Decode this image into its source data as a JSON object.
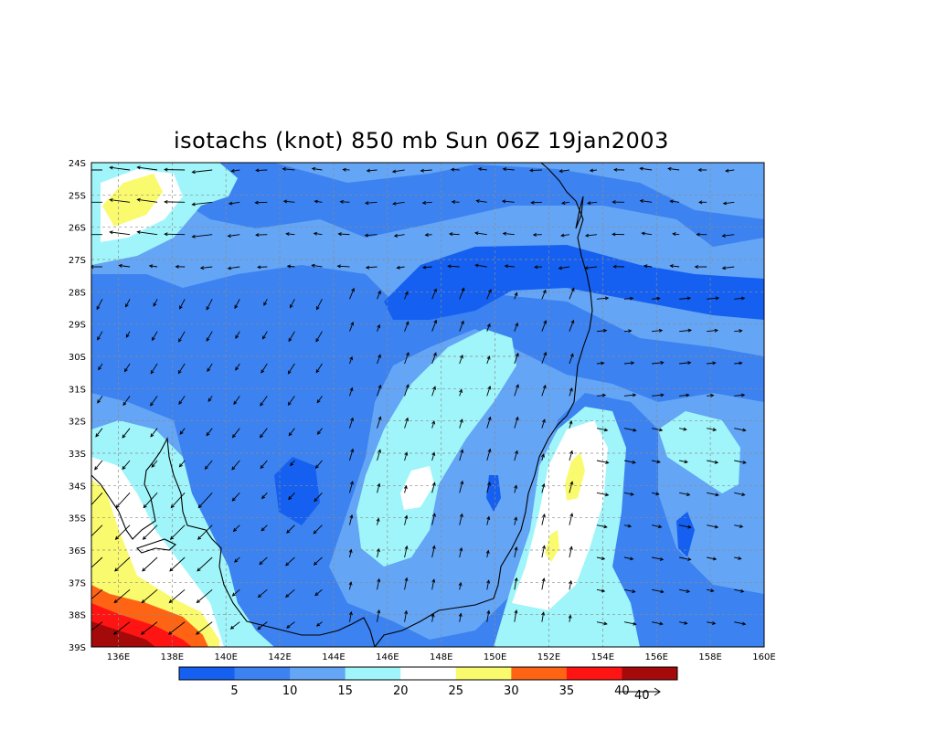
{
  "title": "isotachs (knot) 850 mb Sun 06Z 19jan2003",
  "map": {
    "lon_range": [
      135,
      160
    ],
    "lat_range": [
      -39,
      -24
    ],
    "lon_ticks": [
      "136E",
      "138E",
      "140E",
      "142E",
      "144E",
      "146E",
      "148E",
      "150E",
      "152E",
      "154E",
      "156E",
      "158E",
      "160E"
    ],
    "lat_ticks": [
      "24S",
      "25S",
      "26S",
      "27S",
      "28S",
      "29S",
      "30S",
      "31S",
      "32S",
      "33S",
      "34S",
      "35S",
      "36S",
      "37S",
      "38S",
      "39S"
    ],
    "grid": true
  },
  "colorbar": {
    "levels": [
      "5",
      "10",
      "15",
      "20",
      "25",
      "30",
      "35",
      "40"
    ],
    "colors": [
      "#1560f0",
      "#3c82f0",
      "#64a5f5",
      "#a0f5fa",
      "#ffffff",
      "#fafa6e",
      "#ff6414",
      "#ff1414",
      "#a50a0a"
    ]
  },
  "vector_reference": {
    "value": "40"
  }
}
